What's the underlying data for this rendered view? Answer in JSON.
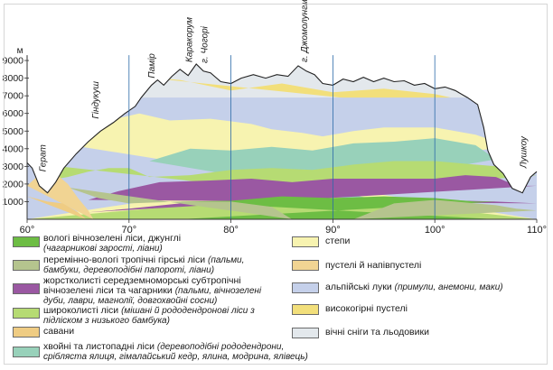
{
  "chart_data": {
    "type": "area",
    "y_unit_label": "м",
    "y_ticks": [
      "1000",
      "2000",
      "3000",
      "4000",
      "5000",
      "6000",
      "7000",
      "8000",
      "9000"
    ],
    "x_ticks": [
      "60°",
      "70°",
      "80°",
      "90°",
      "100°",
      "110°"
    ],
    "ylim": [
      0,
      9500
    ],
    "xlim": [
      60,
      110
    ],
    "grid": "vertical lines at 70°, 80°, 90°, 100°",
    "annotations": [
      {
        "text": "Герат",
        "x": 61.8
      },
      {
        "text": "Гіндукуш",
        "x": 67.0
      },
      {
        "text": "Памір",
        "x": 72.5
      },
      {
        "text": "Каракорум",
        "x": 76.2
      },
      {
        "text": "г. Чогорі",
        "x": 77.7
      },
      {
        "text": "г. Джомолунгма",
        "x": 87.5
      },
      {
        "text": "Лушкоу",
        "x": 109.0
      }
    ],
    "zones": [
      {
        "name": "вічні сніги та льодовики",
        "color": "#e3e8ec"
      },
      {
        "name": "високогірні пустелі",
        "color": "#f2df7b"
      },
      {
        "name": "альпійські луки",
        "color": "#c5d0ea"
      },
      {
        "name": "степи",
        "color": "#f7f3b0"
      },
      {
        "name": "хвойні та листопадні ліси",
        "color": "#98d1ba"
      },
      {
        "name": "широколисті ліси",
        "color": "#b6db73"
      },
      {
        "name": "жорстколисті середземноморські субтропічні вічнозелені ліси та чагарники",
        "color": "#9a58a2"
      },
      {
        "name": "вологі вічнозелені ліси, джунглі",
        "color": "#6dbd44"
      },
      {
        "name": "перемінно-вологі тропічні гірські ліси",
        "color": "#b5c48e"
      },
      {
        "name": "савани",
        "color": "#efcc83"
      },
      {
        "name": "пустелі й напівпустелі",
        "color": "#f1d493"
      }
    ]
  },
  "legend": {
    "left": [
      {
        "label": "вологі вічнозелені ліси, джунглі",
        "note": "(чагарникові зарості, ліани)",
        "color": "#6dbd44"
      },
      {
        "label": "перемінно-вологі тропічні гірські ліси",
        "label_tail": "(пальми,",
        "note": "бамбуки, деревоподібні папороті, ліани)",
        "color": "#b5c48e"
      },
      {
        "label": "жорстколисті середземноморські субтропічні",
        "label2": "вічнозелені ліси та чагарники",
        "label2_tail": "(пальми, вічнозелені",
        "note": "дуби, лаври, магнолії, довгохвойні сосни)",
        "color": "#9a58a2"
      },
      {
        "label": "широколисті ліси",
        "label_tail": "(мішані й рододендронові ліси з",
        "note": "підліском з низького бамбука)",
        "color": "#b6db73"
      },
      {
        "label": "савани",
        "color": "#efcc83"
      },
      {
        "label": "хвойні та листопадні ліси",
        "label_tail": "(деревоподібні рододендрони,",
        "note": "сріблястa ялиця, гімалайський кедр, ялина, модрина, ялівець)",
        "color": "#98d1ba"
      }
    ],
    "right": [
      {
        "label": "степи",
        "color": "#f7f3b0"
      },
      {
        "label": "пустелі й напівпустелі",
        "color": "#f1d493"
      },
      {
        "label": "альпійські луки",
        "label_tail": "(примули, анемони, маки)",
        "color": "#c5d0ea"
      },
      {
        "label": "високогірні пустелі",
        "color": "#f2df7b"
      },
      {
        "label": "вічні сніги та льодовики",
        "color": "#e3e8ec"
      }
    ]
  }
}
